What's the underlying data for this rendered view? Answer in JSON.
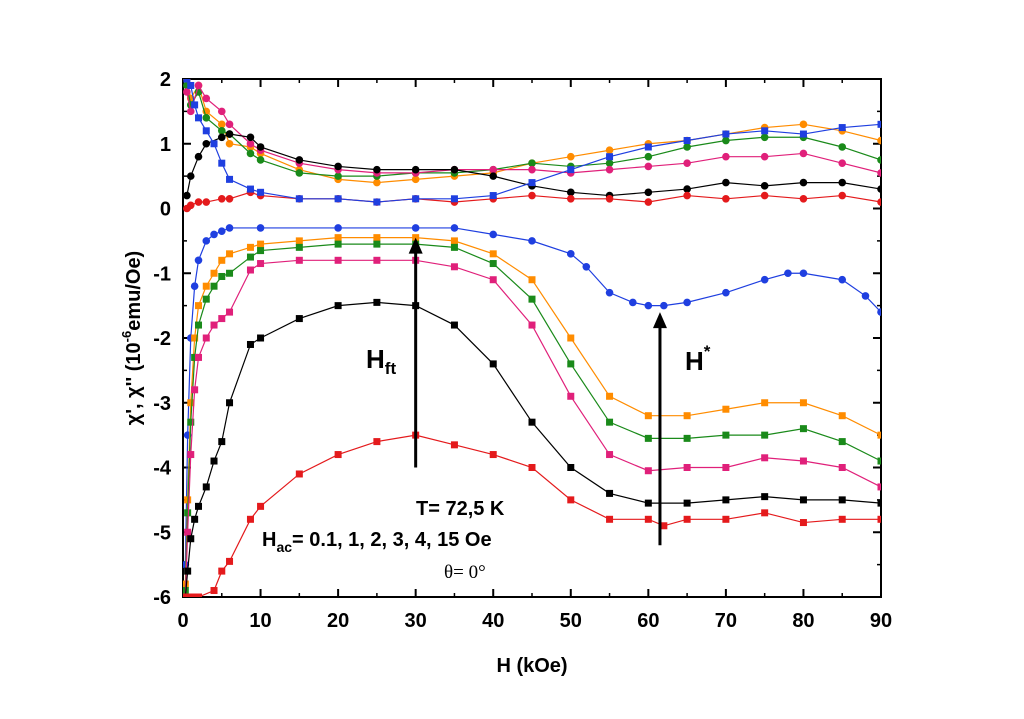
{
  "chart_data": {
    "type": "scatter",
    "title": "",
    "xlabel": "H (kOe)",
    "ylabel": {
      "main": "χ', χ'' (10",
      "exp": "-6",
      "unit": "emu/Oe)"
    },
    "xlim": [
      0,
      90
    ],
    "ylim": [
      -6,
      2
    ],
    "x_ticks": [
      "0",
      "10",
      "20",
      "30",
      "40",
      "50",
      "60",
      "70",
      "80",
      "90"
    ],
    "y_ticks": [
      "2",
      "1",
      "0",
      "-1",
      "-2",
      "-3",
      "-4",
      "-5",
      "-6"
    ],
    "grid": false,
    "legend": "none",
    "annotations": {
      "hft": {
        "text": "H",
        "sub": "ft",
        "arrow_x": 30,
        "arrow_from": -4.0,
        "arrow_to": -0.45
      },
      "hstar": {
        "text": "H",
        "sup": "*",
        "arrow_x": 61.5,
        "arrow_from": -5.2,
        "arrow_to": -1.6
      },
      "temperature": "T= 72,5 K",
      "hac": {
        "prefix": "H",
        "sub": "ac",
        "rest": "= 0.1, 1, 2, 3, 4, 15 Oe"
      },
      "theta": "θ= 0°"
    },
    "series": [
      {
        "name": "",
        "part": "chi_prime",
        "marker": "circle",
        "color": "#ff8c00",
        "x": [
          0.5,
          1,
          2,
          3,
          5,
          6,
          8.7,
          10,
          15,
          20,
          25,
          30,
          35,
          40,
          45,
          50,
          55,
          60,
          65,
          70,
          75,
          80,
          85,
          90
        ],
        "y": [
          2.0,
          1.7,
          1.9,
          1.5,
          1.3,
          1.0,
          0.95,
          0.85,
          0.6,
          0.45,
          0.4,
          0.45,
          0.5,
          0.55,
          0.7,
          0.8,
          0.9,
          1.0,
          1.05,
          1.15,
          1.25,
          1.3,
          1.2,
          1.05
        ]
      },
      {
        "name": "",
        "part": "chi_prime",
        "marker": "circle",
        "color": "#1a8a1a",
        "x": [
          0.5,
          1,
          2,
          3,
          5,
          6,
          8.7,
          10,
          15,
          20,
          25,
          30,
          35,
          40,
          45,
          50,
          55,
          60,
          65,
          70,
          75,
          80,
          85,
          90
        ],
        "y": [
          1.9,
          1.6,
          1.8,
          1.4,
          1.2,
          1.15,
          0.85,
          0.75,
          0.55,
          0.5,
          0.5,
          0.55,
          0.55,
          0.6,
          0.7,
          0.65,
          0.7,
          0.8,
          0.95,
          1.05,
          1.1,
          1.1,
          0.95,
          0.75
        ]
      },
      {
        "name": "",
        "part": "chi_prime",
        "marker": "circle",
        "color": "#e0207a",
        "x": [
          0.5,
          1,
          2,
          3,
          5,
          6,
          8.7,
          10,
          15,
          20,
          25,
          30,
          35,
          40,
          45,
          50,
          55,
          60,
          65,
          70,
          75,
          80,
          85,
          90
        ],
        "y": [
          1.8,
          1.5,
          1.9,
          1.7,
          1.5,
          1.3,
          1.0,
          0.9,
          0.7,
          0.6,
          0.55,
          0.55,
          0.6,
          0.6,
          0.6,
          0.55,
          0.6,
          0.65,
          0.7,
          0.8,
          0.8,
          0.85,
          0.7,
          0.55
        ]
      },
      {
        "name": "",
        "part": "chi_prime",
        "marker": "circle",
        "color": "#000000",
        "x": [
          0.5,
          1,
          2,
          3,
          5,
          6,
          8.7,
          10,
          15,
          20,
          25,
          30,
          35,
          40,
          45,
          50,
          55,
          60,
          65,
          70,
          75,
          80,
          85,
          90
        ],
        "y": [
          0.2,
          0.5,
          0.8,
          1.0,
          1.1,
          1.15,
          1.1,
          0.95,
          0.75,
          0.65,
          0.6,
          0.6,
          0.6,
          0.5,
          0.35,
          0.25,
          0.2,
          0.25,
          0.3,
          0.4,
          0.35,
          0.4,
          0.4,
          0.3
        ]
      },
      {
        "name": "",
        "part": "chi_prime",
        "marker": "circle",
        "color": "#e41a1c",
        "x": [
          0.5,
          1,
          2,
          3,
          5,
          6,
          8.7,
          10,
          15,
          20,
          25,
          30,
          35,
          40,
          45,
          50,
          55,
          60,
          65,
          70,
          75,
          80,
          85,
          90
        ],
        "y": [
          0.0,
          0.05,
          0.1,
          0.1,
          0.15,
          0.15,
          0.25,
          0.2,
          0.15,
          0.15,
          0.1,
          0.15,
          0.1,
          0.15,
          0.2,
          0.15,
          0.15,
          0.1,
          0.2,
          0.15,
          0.2,
          0.15,
          0.2,
          0.1
        ]
      },
      {
        "name": "",
        "part": "chi_prime",
        "marker": "square",
        "color": "#1f3fe0",
        "x": [
          0.5,
          1,
          1.5,
          2,
          3,
          4,
          5,
          6,
          8.7,
          10,
          15,
          20,
          25,
          30,
          35,
          40,
          45,
          50,
          55,
          60,
          65,
          70,
          75,
          80,
          85,
          90
        ],
        "y": [
          2.0,
          1.9,
          1.6,
          1.4,
          1.2,
          1.0,
          0.7,
          0.45,
          0.3,
          0.25,
          0.15,
          0.15,
          0.1,
          0.15,
          0.15,
          0.2,
          0.4,
          0.6,
          0.8,
          0.95,
          1.05,
          1.15,
          1.2,
          1.15,
          1.25,
          1.3
        ]
      },
      {
        "name": "",
        "part": "chi_double_prime",
        "marker": "circle",
        "color": "#1f3fe0",
        "x": [
          0.3,
          0.6,
          1,
          1.5,
          2,
          3,
          4,
          5,
          6,
          10,
          20,
          30,
          35,
          40,
          45,
          50,
          52,
          55,
          58,
          60,
          62,
          65,
          70,
          75,
          78,
          80,
          85,
          88,
          90
        ],
        "y": [
          -5.5,
          -3.5,
          -2.0,
          -1.2,
          -0.8,
          -0.5,
          -0.4,
          -0.35,
          -0.3,
          -0.3,
          -0.3,
          -0.3,
          -0.3,
          -0.4,
          -0.5,
          -0.7,
          -0.9,
          -1.3,
          -1.45,
          -1.5,
          -1.5,
          -1.45,
          -1.3,
          -1.1,
          -1.0,
          -1.0,
          -1.1,
          -1.35,
          -1.6
        ]
      },
      {
        "name": "",
        "part": "chi_double_prime",
        "marker": "square",
        "color": "#ff8c00",
        "x": [
          0.3,
          0.6,
          1,
          1.5,
          2,
          3,
          4,
          5,
          6,
          8.7,
          10,
          15,
          20,
          25,
          30,
          35,
          40,
          45,
          50,
          55,
          60,
          65,
          70,
          75,
          80,
          85,
          90
        ],
        "y": [
          -5.8,
          -4.5,
          -3.0,
          -2.0,
          -1.5,
          -1.2,
          -1.0,
          -0.8,
          -0.7,
          -0.6,
          -0.55,
          -0.5,
          -0.45,
          -0.45,
          -0.45,
          -0.5,
          -0.7,
          -1.1,
          -2.0,
          -2.9,
          -3.2,
          -3.2,
          -3.1,
          -3.0,
          -3.0,
          -3.2,
          -3.5
        ]
      },
      {
        "name": "",
        "part": "chi_double_prime",
        "marker": "square",
        "color": "#1a8a1a",
        "x": [
          0.3,
          0.6,
          1,
          1.5,
          2,
          3,
          4,
          5,
          6,
          8.7,
          10,
          15,
          20,
          25,
          30,
          35,
          40,
          45,
          50,
          55,
          60,
          65,
          70,
          75,
          80,
          85,
          90
        ],
        "y": [
          -5.9,
          -4.7,
          -3.3,
          -2.3,
          -1.8,
          -1.4,
          -1.2,
          -1.05,
          -1.0,
          -0.75,
          -0.65,
          -0.6,
          -0.55,
          -0.55,
          -0.55,
          -0.6,
          -0.85,
          -1.4,
          -2.4,
          -3.3,
          -3.55,
          -3.55,
          -3.5,
          -3.5,
          -3.4,
          -3.6,
          -3.9
        ]
      },
      {
        "name": "",
        "part": "chi_double_prime",
        "marker": "square",
        "color": "#e0207a",
        "x": [
          0.3,
          0.6,
          1,
          1.5,
          2,
          3,
          4,
          5,
          6,
          8.7,
          10,
          15,
          20,
          25,
          30,
          35,
          40,
          45,
          50,
          55,
          60,
          65,
          70,
          75,
          80,
          85,
          90
        ],
        "y": [
          -6.0,
          -5.0,
          -3.8,
          -2.8,
          -2.3,
          -2.0,
          -1.8,
          -1.7,
          -1.6,
          -0.95,
          -0.85,
          -0.8,
          -0.8,
          -0.8,
          -0.8,
          -0.9,
          -1.1,
          -1.8,
          -2.9,
          -3.8,
          -4.05,
          -4.0,
          -4.0,
          -3.85,
          -3.9,
          -4.0,
          -4.3
        ]
      },
      {
        "name": "",
        "part": "chi_double_prime",
        "marker": "square",
        "color": "#000000",
        "x": [
          0.3,
          0.6,
          1,
          1.5,
          2,
          3,
          4,
          5,
          6,
          8.7,
          10,
          15,
          20,
          25,
          30,
          35,
          40,
          45,
          50,
          55,
          60,
          65,
          70,
          75,
          80,
          85,
          90
        ],
        "y": [
          -6.0,
          -5.6,
          -5.1,
          -4.8,
          -4.6,
          -4.3,
          -3.9,
          -3.6,
          -3.0,
          -2.1,
          -2.0,
          -1.7,
          -1.5,
          -1.45,
          -1.5,
          -1.8,
          -2.4,
          -3.3,
          -4.0,
          -4.4,
          -4.55,
          -4.55,
          -4.5,
          -4.45,
          -4.5,
          -4.5,
          -4.55
        ]
      },
      {
        "name": "",
        "part": "chi_double_prime",
        "marker": "square",
        "color": "#e41a1c",
        "x": [
          0.3,
          0.6,
          1,
          1.5,
          2,
          4,
          5,
          6,
          8.7,
          10,
          15,
          20,
          25,
          30,
          35,
          40,
          45,
          50,
          55,
          60,
          62,
          65,
          70,
          75,
          80,
          85,
          90
        ],
        "y": [
          -6.0,
          -6.0,
          -6.0,
          -6.0,
          -6.0,
          -5.9,
          -5.6,
          -5.45,
          -4.8,
          -4.6,
          -4.1,
          -3.8,
          -3.6,
          -3.5,
          -3.65,
          -3.8,
          -4.0,
          -4.5,
          -4.8,
          -4.8,
          -4.9,
          -4.8,
          -4.8,
          -4.7,
          -4.85,
          -4.8,
          -4.8
        ]
      }
    ]
  }
}
